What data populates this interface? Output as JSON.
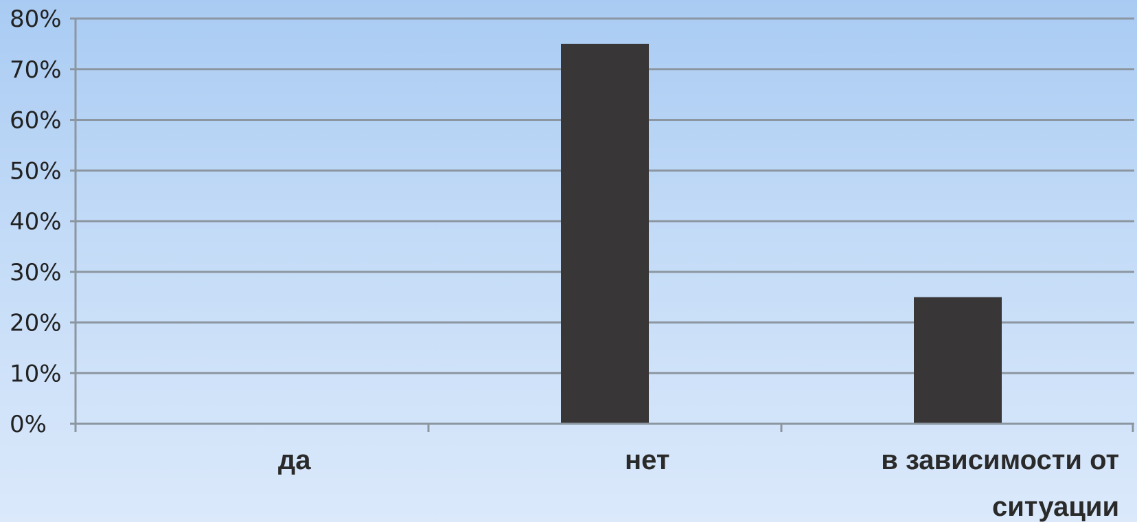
{
  "chart_data": {
    "type": "bar",
    "categories": [
      "да",
      "нет",
      "в зависимости от ситуации"
    ],
    "category_label_lines": [
      [
        "да"
      ],
      [
        "нет"
      ],
      [
        "в зависимости от",
        "ситуации"
      ]
    ],
    "values": [
      0,
      75,
      25
    ],
    "value_unit": "%",
    "yticks": [
      "0%",
      "10%",
      "20%",
      "30%",
      "40%",
      "50%",
      "60%",
      "70%",
      "80%"
    ],
    "ylim": [
      0,
      80
    ],
    "grid": true,
    "legend": "none",
    "title": "",
    "xlabel": "",
    "ylabel": "",
    "colors": {
      "bar": "#393637",
      "grid": "#8c96a0",
      "axis": "#8c96a0",
      "text": "#222222"
    }
  }
}
